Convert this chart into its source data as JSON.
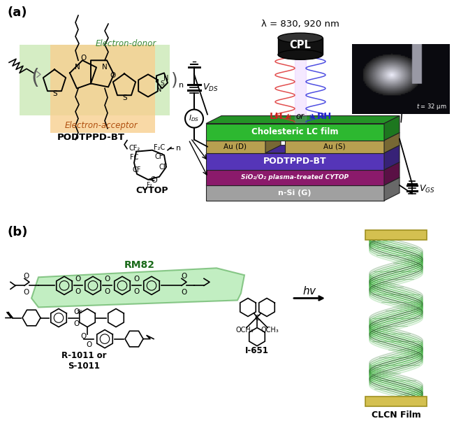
{
  "panel_a_label": "(a)",
  "panel_b_label": "(b)",
  "wavelength_text": "λ = 830, 920 nm",
  "cpl_text": "CPL",
  "lh_text": "LH",
  "rh_text": "RH",
  "or_text": "or",
  "layer1_text": "Cholesteric LC film",
  "layer1_color": "#2db830",
  "layer2_color": "#b8a050",
  "layer3_text": "PODTPPD-BT",
  "layer3_color": "#5535b8",
  "layer4_text": "SiO₂/O₂ plasma-treated CYTOP",
  "layer4_color": "#8b1a6b",
  "layer5_text": "n-Si (G)",
  "layer5_color": "#a0a0a0",
  "podtppd_text": "PODTPPD-BT",
  "electron_donor_text": "Electron-donor",
  "electron_acceptor_text": "Electron-acceptor",
  "donor_color": "#c8e8b0",
  "acceptor_color": "#f8d090",
  "cytop_text": "CYTOP",
  "rm82_text": "RM82",
  "r1011_text": "R-1011 or\nS-1011",
  "i651_text": "I-651",
  "clcn_text": "CLCN Film",
  "bg_color": "#ffffff",
  "green_hl": "#90e090",
  "green_hl_edge": "#40a040",
  "layer1_color_dark": "#229922",
  "layer3_color_dark": "#3322aa",
  "layer4_color_dark": "#6b1050",
  "layer2_color_dark": "#8a7838"
}
